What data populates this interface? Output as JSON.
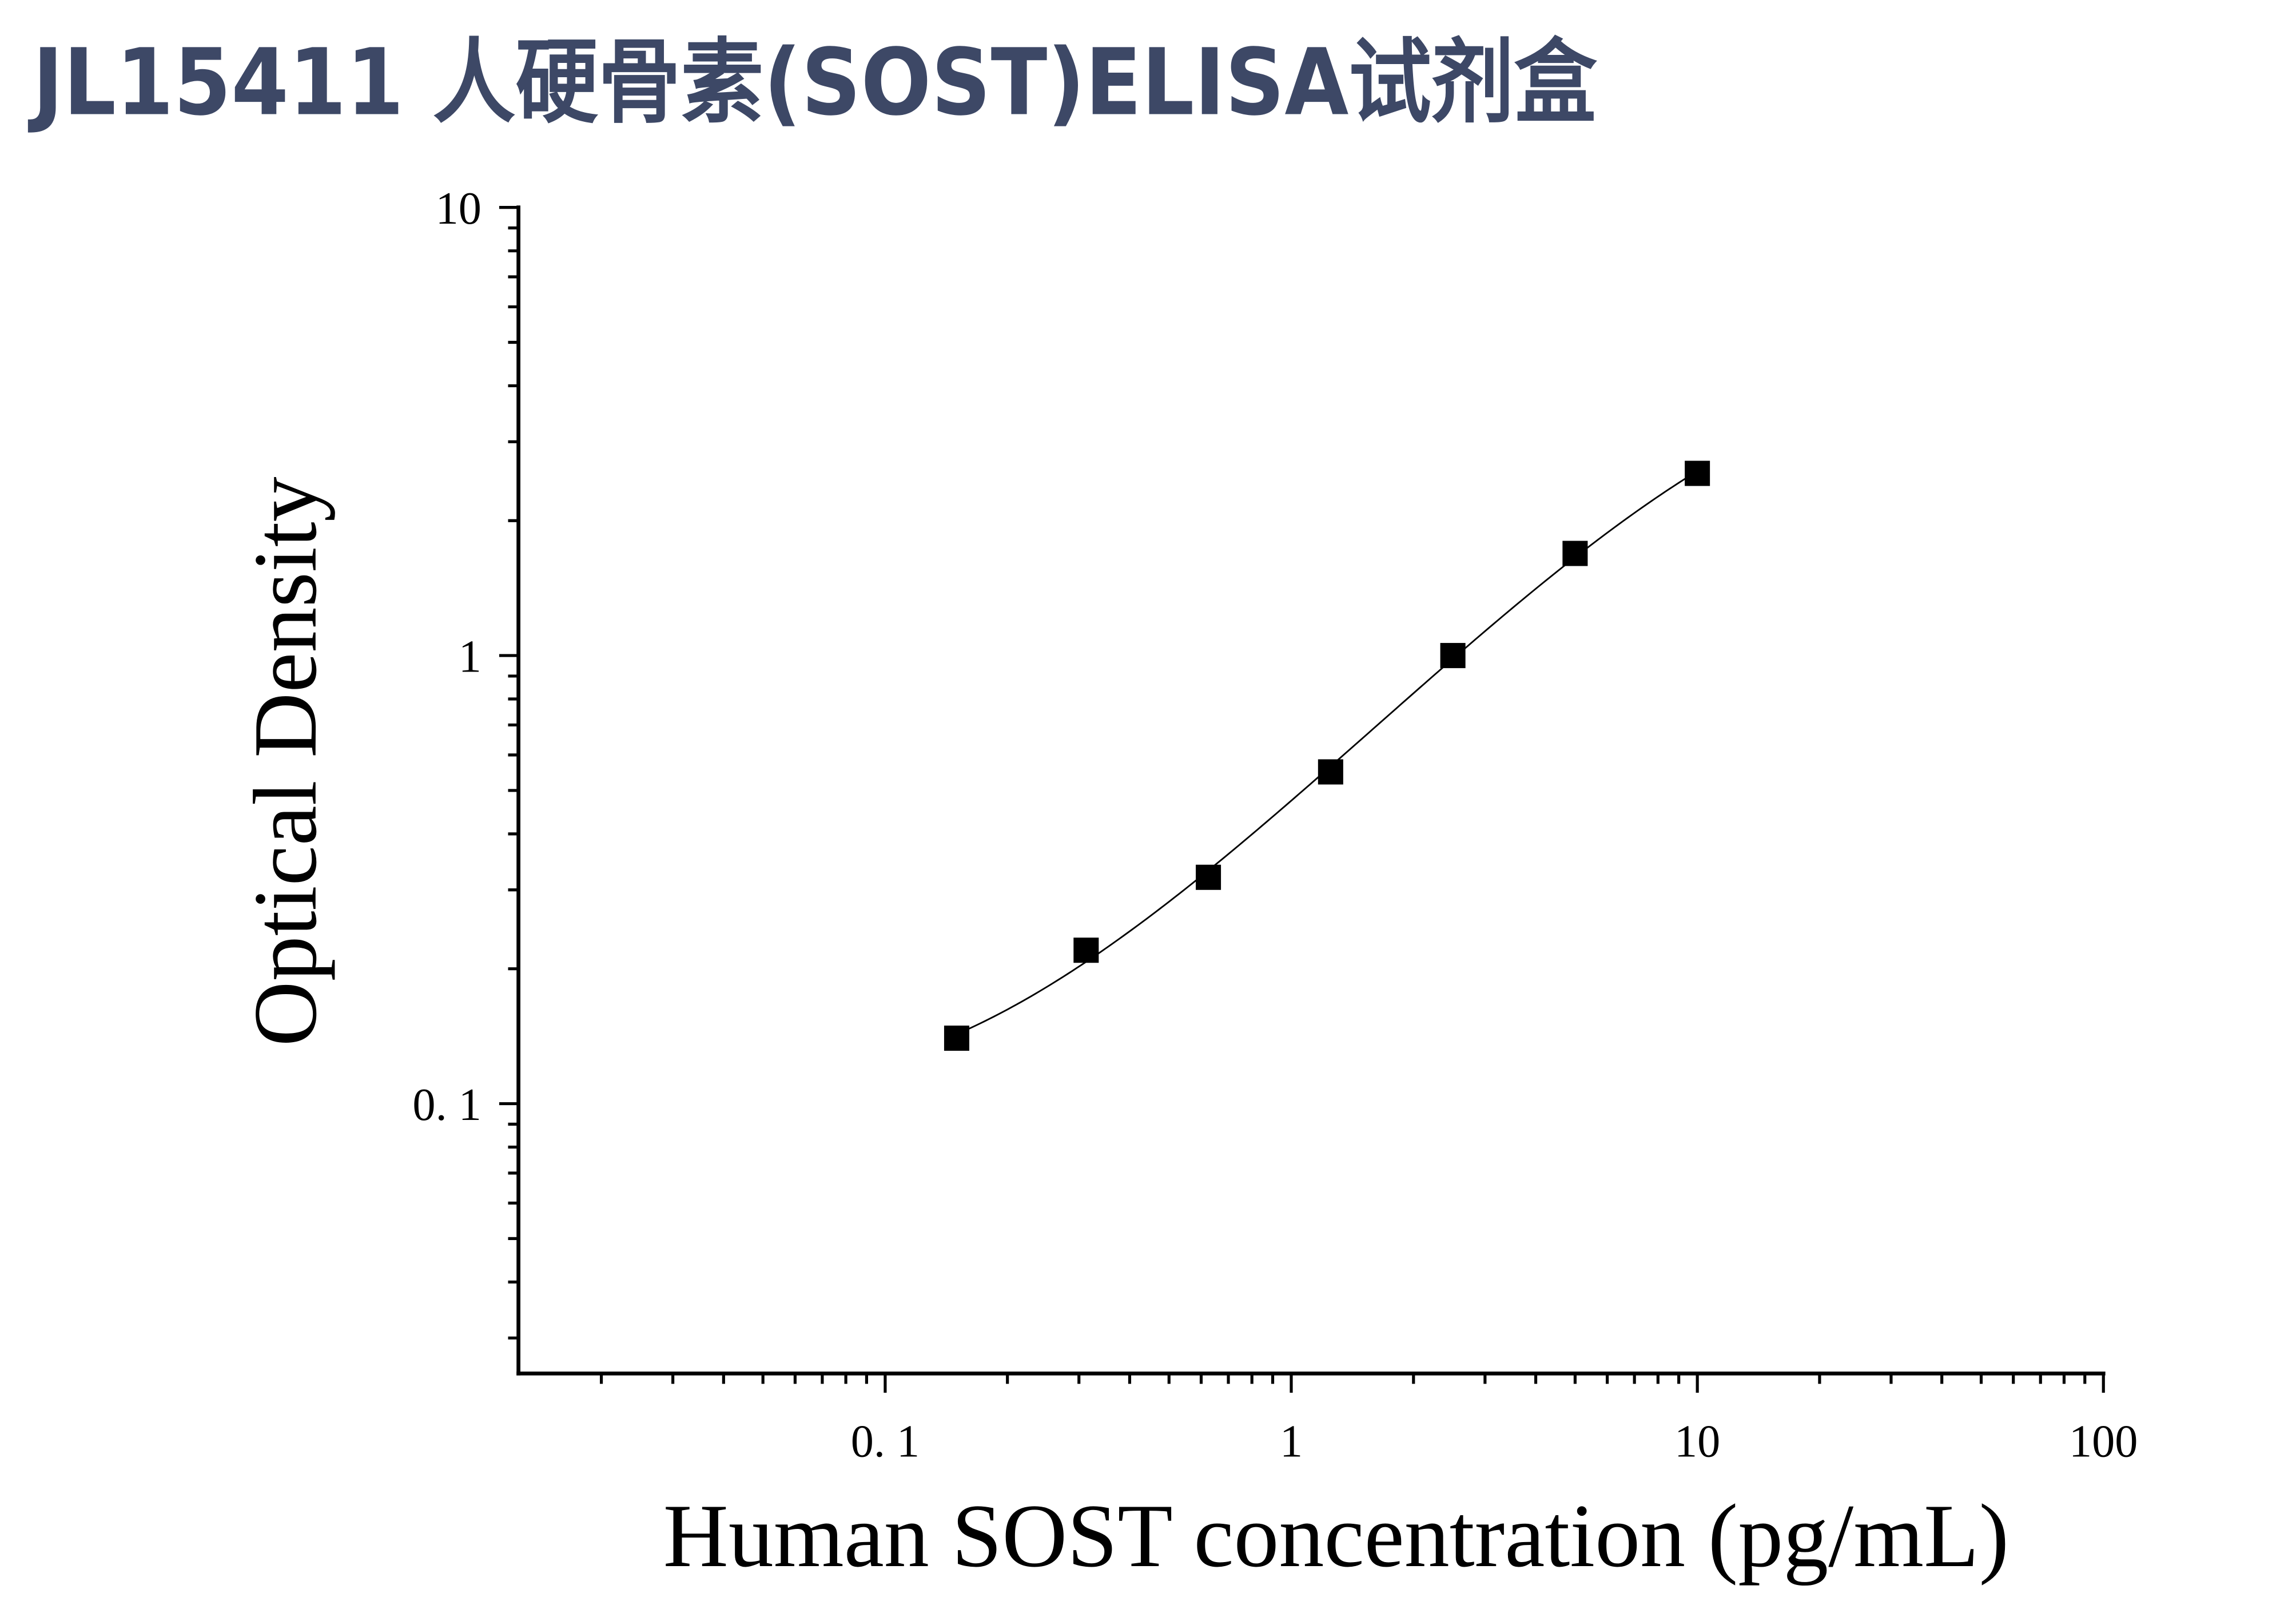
{
  "colors": {
    "background": "#ffffff",
    "title": "#3d4866",
    "ink": "#000000"
  },
  "chart_data": {
    "type": "scatter",
    "title": "JL15411 人硬骨素(SOST)ELISA试剂盒",
    "xlabel": "Human SOST concentration (pg/mL)",
    "ylabel": "Optical Density",
    "x_scale": "log",
    "y_scale": "log",
    "xlim": [
      0.0125,
      100
    ],
    "ylim": [
      0.025,
      10
    ],
    "x_ticks": [
      {
        "value": 0.1,
        "label": "0. 1"
      },
      {
        "value": 1,
        "label": "1"
      },
      {
        "value": 10,
        "label": "10"
      },
      {
        "value": 100,
        "label": "100"
      }
    ],
    "y_ticks": [
      {
        "value": 0.1,
        "label": "0. 1"
      },
      {
        "value": 1,
        "label": "1"
      },
      {
        "value": 10,
        "label": "10"
      }
    ],
    "series": [
      {
        "x": [
          0.15,
          0.3125,
          0.625,
          1.25,
          2.5,
          5,
          10
        ],
        "y": [
          0.14,
          0.22,
          0.32,
          0.55,
          1.0,
          1.69,
          2.55
        ],
        "marker": "square",
        "fit_curve": true
      }
    ],
    "grid": false,
    "legend": "none"
  }
}
